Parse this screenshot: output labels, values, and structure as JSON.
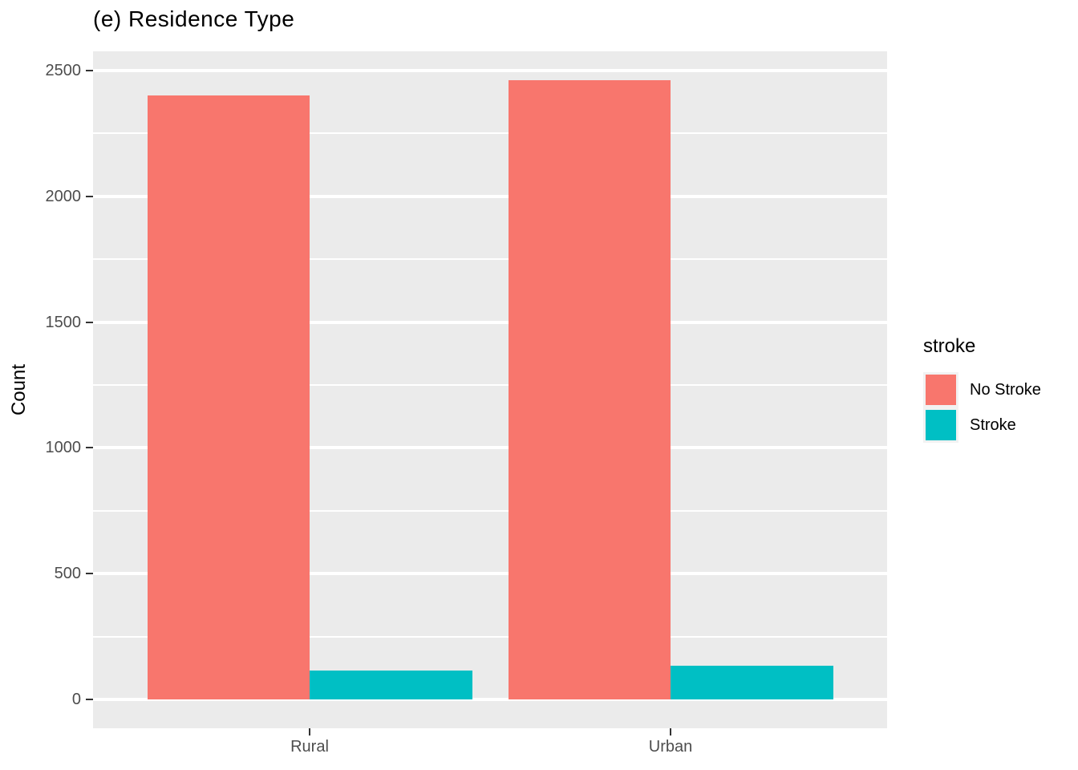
{
  "title": "(e) Residence Type",
  "y_axis": {
    "label": "Count",
    "tick_labels": [
      "0",
      "500",
      "1000",
      "1500",
      "2000",
      "2500"
    ],
    "tick_values": [
      0,
      500,
      1000,
      1500,
      2000,
      2500
    ],
    "minor_values": [
      250,
      750,
      1250,
      1750,
      2250
    ]
  },
  "x_axis": {
    "categories": [
      "Rural",
      "Urban"
    ]
  },
  "legend": {
    "title": "stroke",
    "items": [
      {
        "label": "No Stroke",
        "color": "#F8766D"
      },
      {
        "label": "Stroke",
        "color": "#00BFC4"
      }
    ]
  },
  "colors": {
    "panel_bg": "#EBEBEB",
    "grid": "#FFFFFF",
    "axis_text": "#4D4D4D",
    "tick_mark": "#333333",
    "title_text": "#000000",
    "no_stroke": "#F8766D",
    "stroke": "#00BFC4"
  },
  "chart_data": {
    "type": "bar",
    "title": "(e) Residence Type",
    "xlabel": "",
    "ylabel": "Count",
    "categories": [
      "Rural",
      "Urban"
    ],
    "series": [
      {
        "name": "No Stroke",
        "color": "#F8766D",
        "values": [
          2400,
          2461
        ]
      },
      {
        "name": "Stroke",
        "color": "#00BFC4",
        "values": [
          114,
          135
        ]
      }
    ],
    "ylim": [
      0,
      2500
    ],
    "y_major_ticks": [
      0,
      500,
      1000,
      1500,
      2000,
      2500
    ],
    "grid": true,
    "legend_title": "stroke",
    "legend_position": "right",
    "bar_mode": "dodge"
  }
}
